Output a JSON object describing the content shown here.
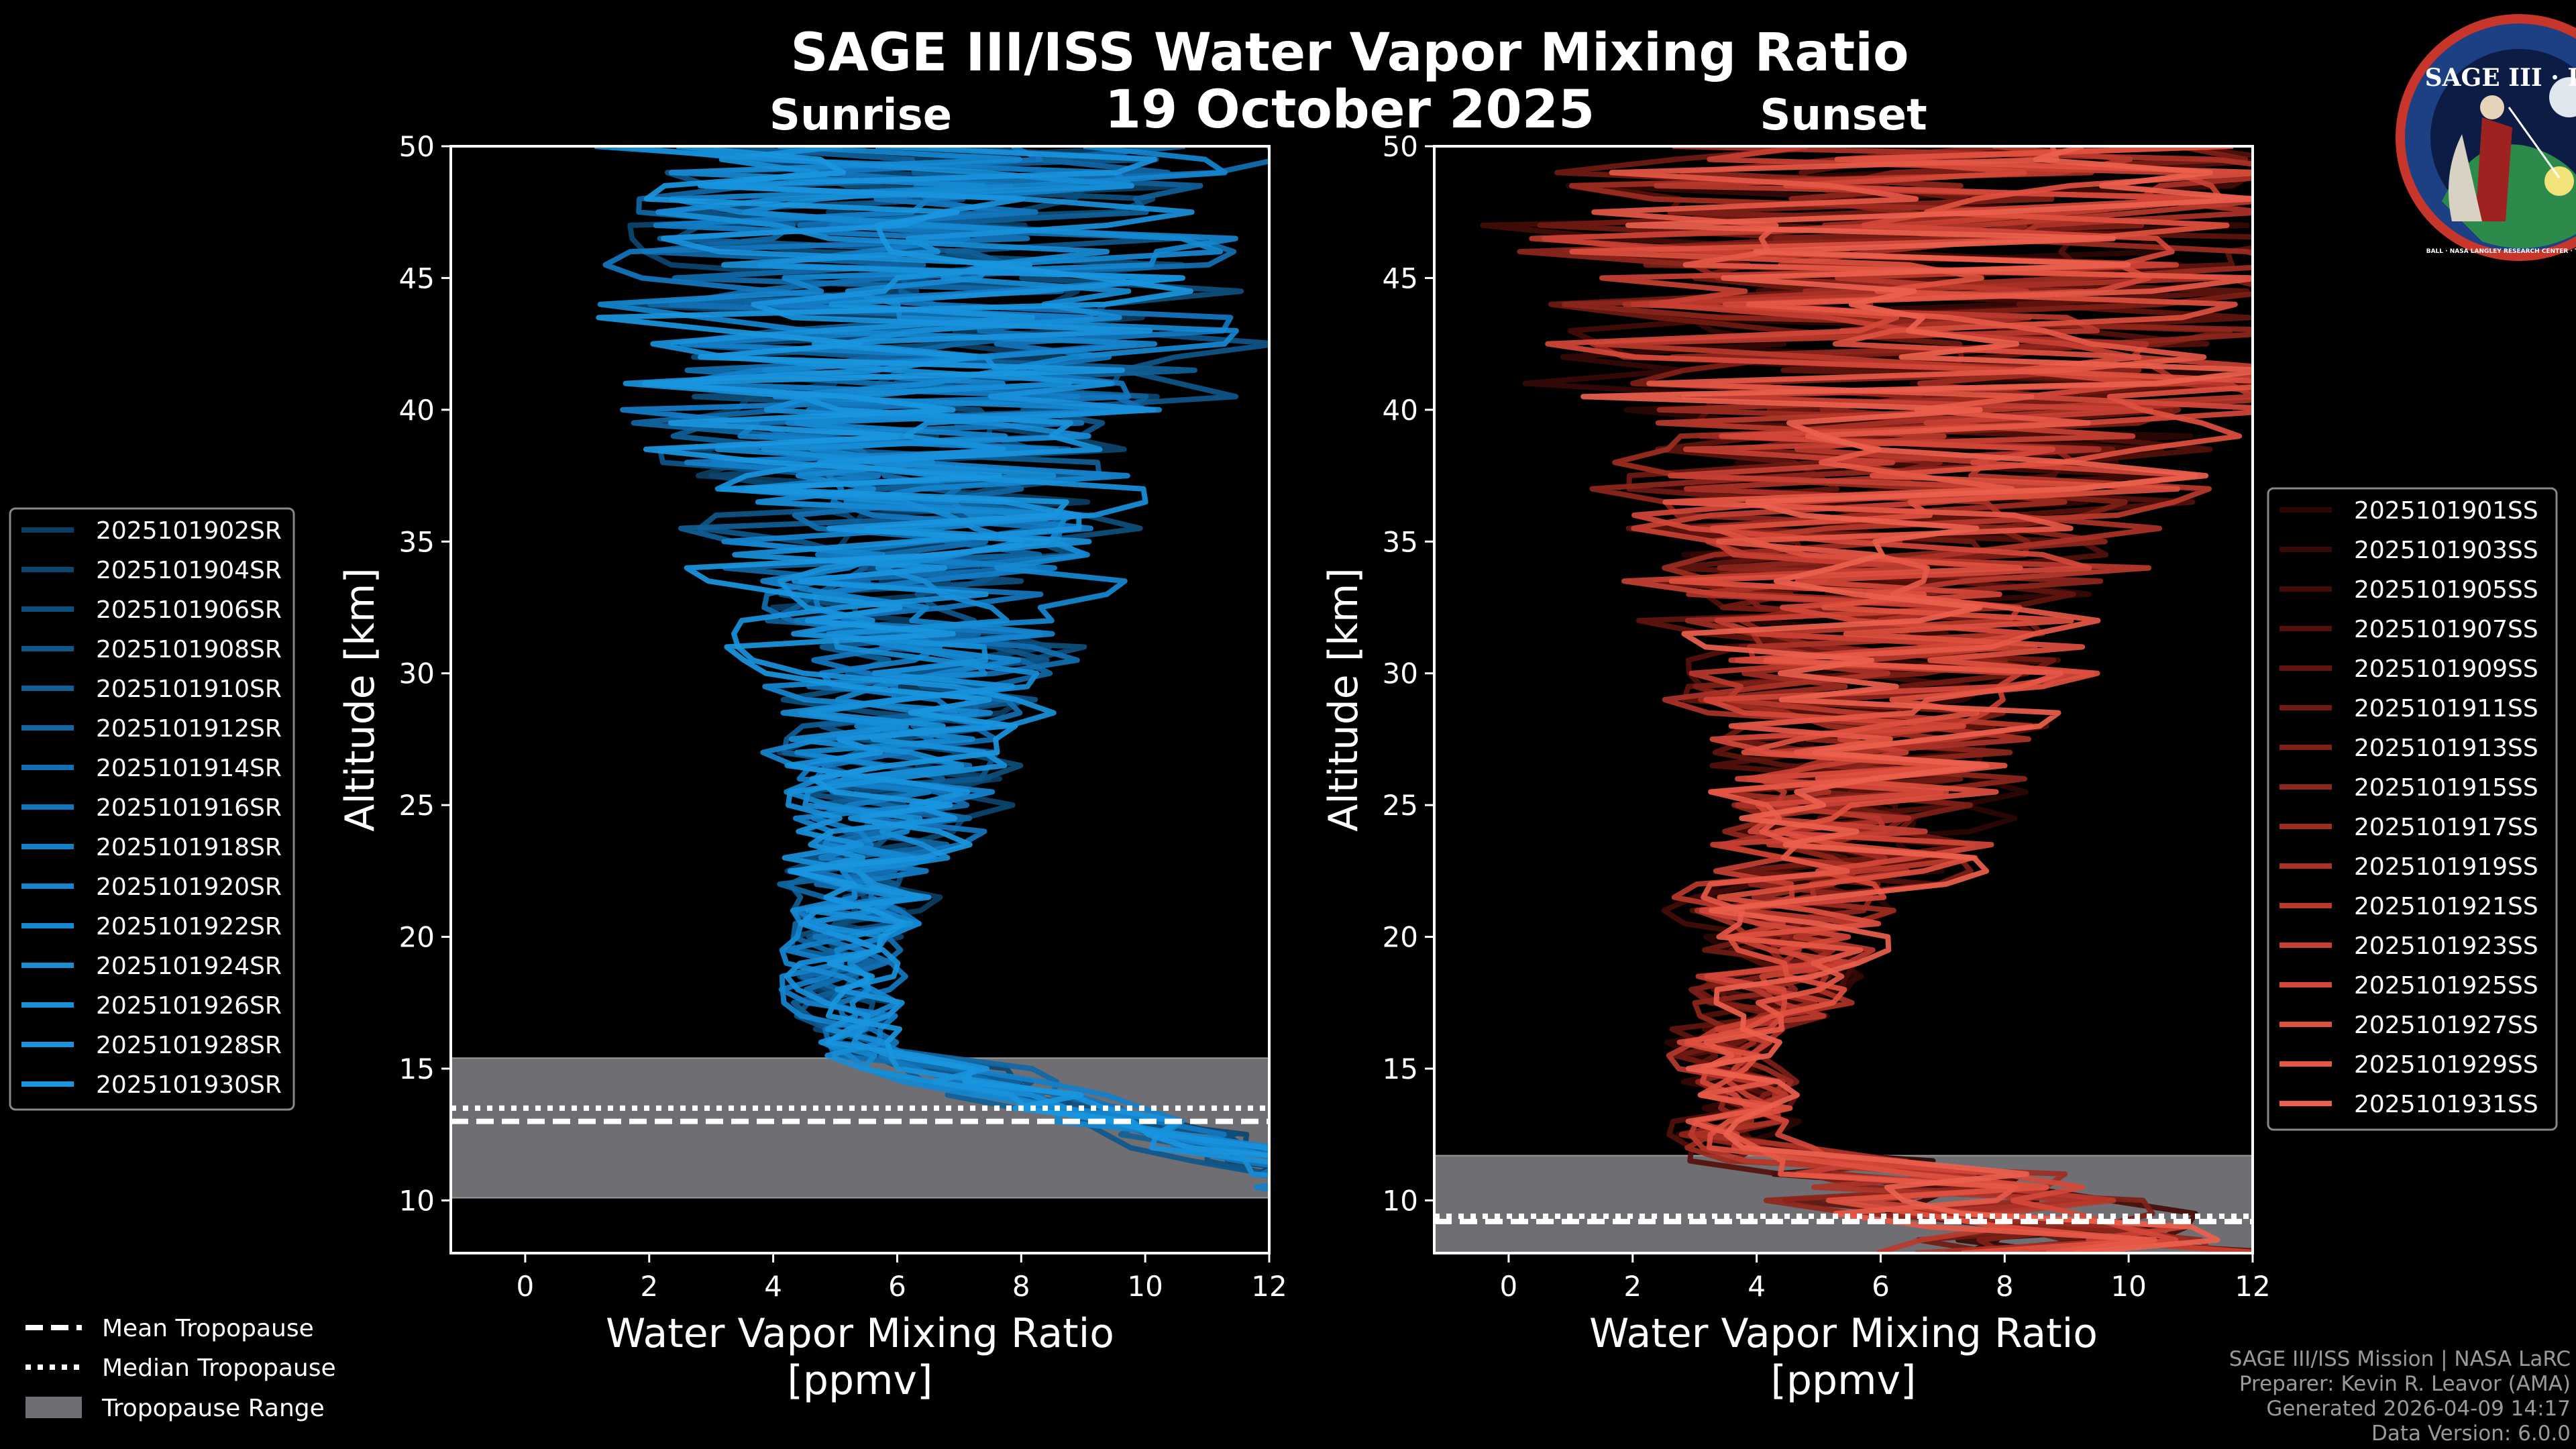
{
  "chart_data": {
    "title": "SAGE III/ISS Water Vapor Mixing Ratio",
    "date": "19 October 2025",
    "type": "line",
    "panels": [
      {
        "id": "sunrise",
        "subtitle": "Sunrise",
        "xlabel": "Water Vapor Mixing Ratio",
        "xunit": "[ppmv]",
        "ylabel": "Altitude [km]",
        "xlim": [
          -1.2,
          12
        ],
        "ylim": [
          8,
          50
        ],
        "xticks": [
          "0",
          "2",
          "4",
          "6",
          "8",
          "10",
          "12"
        ],
        "yticks": [
          "10",
          "15",
          "20",
          "25",
          "30",
          "35",
          "40",
          "45",
          "50"
        ],
        "base_color": "#1a8fd6",
        "tropopause": {
          "mean_km": 13.0,
          "median_km": 13.5,
          "range_km": [
            10.1,
            15.4
          ]
        },
        "series": [
          {
            "name": "2025101902SR",
            "color": "#0b3e62"
          },
          {
            "name": "2025101904SR",
            "color": "#0c4670"
          },
          {
            "name": "2025101906SR",
            "color": "#0d4f7d"
          },
          {
            "name": "2025101908SR",
            "color": "#0e578b"
          },
          {
            "name": "2025101910SR",
            "color": "#0f5f98"
          },
          {
            "name": "2025101912SR",
            "color": "#1067a5"
          },
          {
            "name": "2025101914SR",
            "color": "#126fb2"
          },
          {
            "name": "2025101916SR",
            "color": "#1377bf"
          },
          {
            "name": "2025101918SR",
            "color": "#147fc9"
          },
          {
            "name": "2025101920SR",
            "color": "#1585cf"
          },
          {
            "name": "2025101922SR",
            "color": "#1689d3"
          },
          {
            "name": "2025101924SR",
            "color": "#178dd7"
          },
          {
            "name": "2025101926SR",
            "color": "#1890da"
          },
          {
            "name": "2025101928SR",
            "color": "#1993dd"
          },
          {
            "name": "2025101930SR",
            "color": "#1a96e0"
          }
        ]
      },
      {
        "id": "sunset",
        "subtitle": "Sunset",
        "xlabel": "Water Vapor Mixing Ratio",
        "xunit": "[ppmv]",
        "ylabel": "Altitude [km]",
        "xlim": [
          -1.2,
          12
        ],
        "ylim": [
          8,
          50
        ],
        "xticks": [
          "0",
          "2",
          "4",
          "6",
          "8",
          "10",
          "12"
        ],
        "yticks": [
          "10",
          "15",
          "20",
          "25",
          "30",
          "35",
          "40",
          "45",
          "50"
        ],
        "base_color": "#e05545",
        "tropopause": {
          "mean_km": 9.2,
          "median_km": 9.4,
          "range_km": [
            8,
            11.7
          ]
        },
        "series": [
          {
            "name": "2025101901SS",
            "color": "#2a0604"
          },
          {
            "name": "2025101903SS",
            "color": "#360906"
          },
          {
            "name": "2025101905SS",
            "color": "#440c08"
          },
          {
            "name": "2025101907SS",
            "color": "#52100b"
          },
          {
            "name": "2025101909SS",
            "color": "#61150e"
          },
          {
            "name": "2025101911SS",
            "color": "#701a12"
          },
          {
            "name": "2025101913SS",
            "color": "#7f2017"
          },
          {
            "name": "2025101915SS",
            "color": "#8e261c"
          },
          {
            "name": "2025101917SS",
            "color": "#9d2c21"
          },
          {
            "name": "2025101919SS",
            "color": "#ac3227"
          },
          {
            "name": "2025101921SS",
            "color": "#ba392d"
          },
          {
            "name": "2025101923SS",
            "color": "#c84033"
          },
          {
            "name": "2025101925SS",
            "color": "#d44839"
          },
          {
            "name": "2025101927SS",
            "color": "#de503f"
          },
          {
            "name": "2025101929SS",
            "color": "#e65846"
          },
          {
            "name": "2025101931SS",
            "color": "#ec5f4d"
          }
        ]
      }
    ],
    "tropopause_legend": [
      {
        "label": "Mean Tropopause",
        "style": "dashed"
      },
      {
        "label": "Median Tropopause",
        "style": "dotted"
      },
      {
        "label": "Tropopause Range",
        "style": "patch"
      }
    ]
  },
  "logo": {
    "name": "SAGE III · ISS",
    "ring_text": "BALL · NASA LANGLEY RESEARCH CENTER · TAS-I · ESA"
  },
  "credits": [
    "SAGE III/ISS Mission | NASA LaRC",
    "Preparer: Kevin R. Leavor (AMA)",
    "Generated 2026-04-09 14:17",
    "Data Version: 6.0.0"
  ]
}
